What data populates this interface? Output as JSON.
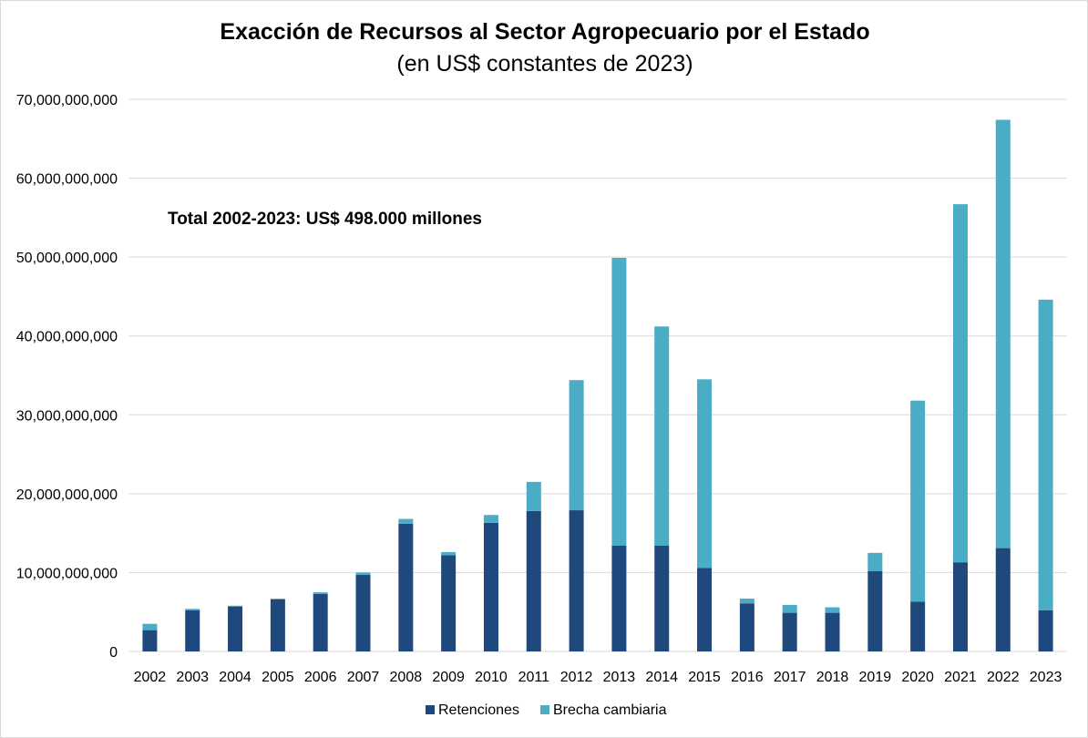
{
  "chart_data": {
    "type": "bar",
    "stacked": true,
    "title": "Exacción de Recursos al Sector Agropecuario por el Estado",
    "subtitle": "(en US$ constantes de 2023)",
    "annotation": "Total 2002-2023: US$ 498.000 millones",
    "categories": [
      "2002",
      "2003",
      "2004",
      "2005",
      "2006",
      "2007",
      "2008",
      "2009",
      "2010",
      "2011",
      "2012",
      "2013",
      "2014",
      "2015",
      "2016",
      "2017",
      "2018",
      "2019",
      "2020",
      "2021",
      "2022",
      "2023"
    ],
    "series": [
      {
        "name": "Retenciones",
        "color": "#1f497d",
        "values": [
          2700000000,
          5200000000,
          5700000000,
          6600000000,
          7300000000,
          9700000000,
          16200000000,
          12200000000,
          16300000000,
          17800000000,
          17900000000,
          13400000000,
          13400000000,
          10600000000,
          6100000000,
          4900000000,
          4900000000,
          10200000000,
          6300000000,
          11300000000,
          13100000000,
          5200000000
        ]
      },
      {
        "name": "Brecha cambiaria",
        "color": "#4bacc6",
        "values": [
          800000000,
          200000000,
          100000000,
          100000000,
          200000000,
          300000000,
          600000000,
          400000000,
          1000000000,
          3700000000,
          16500000000,
          36500000000,
          27800000000,
          23900000000,
          600000000,
          1000000000,
          700000000,
          2300000000,
          25500000000,
          45400000000,
          54300000000,
          39400000000
        ]
      }
    ],
    "ylim": [
      0,
      70000000000
    ],
    "yticks": [
      {
        "value": 0,
        "label": "0"
      },
      {
        "value": 10000000000,
        "label": "10,000,000,000"
      },
      {
        "value": 20000000000,
        "label": "20,000,000,000"
      },
      {
        "value": 30000000000,
        "label": "30,000,000,000"
      },
      {
        "value": 40000000000,
        "label": "40,000,000,000"
      },
      {
        "value": 50000000000,
        "label": "50,000,000,000"
      },
      {
        "value": 60000000000,
        "label": "60,000,000,000"
      },
      {
        "value": 70000000000,
        "label": "70,000,000,000"
      }
    ],
    "grid": true,
    "legend_position": "bottom"
  }
}
